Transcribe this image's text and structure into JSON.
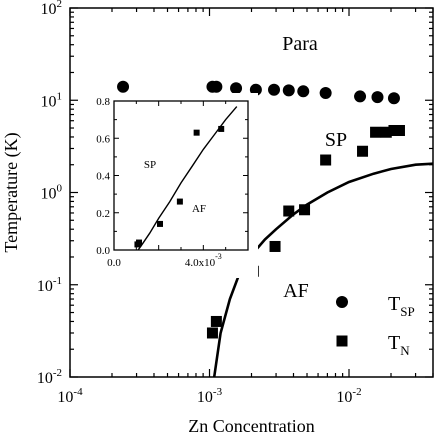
{
  "chart_data": [
    {
      "type": "scatter",
      "xlabel": "Zn Concentration",
      "ylabel": "Temperature (K)",
      "xscale": "log",
      "yscale": "log",
      "xlim": [
        0.0001,
        0.04
      ],
      "ylim": [
        0.01,
        100
      ],
      "x_ticks": [
        {
          "value": 0.0001,
          "base": "10",
          "exp": "-4"
        },
        {
          "value": 0.001,
          "base": "10",
          "exp": "-3"
        },
        {
          "value": 0.01,
          "base": "10",
          "exp": "-2"
        }
      ],
      "y_ticks": [
        {
          "value": 0.01,
          "base": "10",
          "exp": "-2"
        },
        {
          "value": 0.1,
          "base": "10",
          "exp": "-1"
        },
        {
          "value": 1,
          "base": "10",
          "exp": "0"
        },
        {
          "value": 10,
          "base": "10",
          "exp": "1"
        },
        {
          "value": 100,
          "base": "10",
          "exp": "2"
        }
      ],
      "series": [
        {
          "name_main": "T",
          "name_sub": "SP",
          "marker": "circle",
          "x": [
            0.00024,
            0.00105,
            0.00112,
            0.00155,
            0.00215,
            0.0029,
            0.0037,
            0.0047,
            0.0068,
            0.012,
            0.016,
            0.021
          ],
          "y": [
            14,
            14,
            14,
            13.5,
            13,
            13,
            12.8,
            12.5,
            12,
            11,
            10.8,
            10.5
          ]
        },
        {
          "name_main": "T",
          "name_sub": "N",
          "marker": "square",
          "x": [
            0.00105,
            0.00112,
            0.00206,
            0.00295,
            0.0037,
            0.0048,
            0.0068,
            0.0125,
            0.0155,
            0.0185,
            0.021,
            0.023
          ],
          "y": [
            0.03,
            0.04,
            0.14,
            0.26,
            0.63,
            0.65,
            2.25,
            2.8,
            4.5,
            4.5,
            4.7,
            4.7
          ]
        },
        {
          "name": "",
          "type": "line",
          "style": "solid",
          "x": [
            0.00108,
            0.0012,
            0.0014,
            0.0016,
            0.002,
            0.0025,
            0.003,
            0.004,
            0.005,
            0.007,
            0.01,
            0.015,
            0.02,
            0.03,
            0.04
          ],
          "y": [
            0.01,
            0.03,
            0.07,
            0.12,
            0.21,
            0.31,
            0.4,
            0.58,
            0.74,
            1.0,
            1.3,
            1.6,
            1.8,
            2.0,
            2.05
          ]
        }
      ],
      "annotations": [
        "Para",
        "SP",
        "AF"
      ],
      "grid": false,
      "legend": "bottom-right"
    },
    {
      "type": "scatter",
      "inset": true,
      "xlim": [
        0,
        0.006
      ],
      "ylim": [
        0,
        0.8
      ],
      "x_ticks": [
        {
          "value": 0,
          "label": "0.0"
        },
        {
          "value": 0.004,
          "label": "4.0x10",
          "exp": "-3"
        }
      ],
      "y_ticks": [
        {
          "value": 0,
          "label": "0.0"
        },
        {
          "value": 0.2,
          "label": "0.2"
        },
        {
          "value": 0.4,
          "label": "0.4"
        },
        {
          "value": 0.6,
          "label": "0.6"
        },
        {
          "value": 0.8,
          "label": "0.8"
        }
      ],
      "series": [
        {
          "marker": "square",
          "x": [
            0.00105,
            0.00112,
            0.00206,
            0.00295,
            0.0037,
            0.0048
          ],
          "y": [
            0.03,
            0.04,
            0.14,
            0.26,
            0.63,
            0.65
          ]
        },
        {
          "type": "line",
          "x": [
            0.00108,
            0.0012,
            0.0016,
            0.002,
            0.0025,
            0.003,
            0.0035,
            0.004,
            0.0045,
            0.005,
            0.0055
          ],
          "y": [
            0.0,
            0.02,
            0.09,
            0.17,
            0.26,
            0.36,
            0.45,
            0.54,
            0.62,
            0.7,
            0.77
          ]
        }
      ],
      "annotations": [
        "SP",
        "AF"
      ]
    }
  ]
}
